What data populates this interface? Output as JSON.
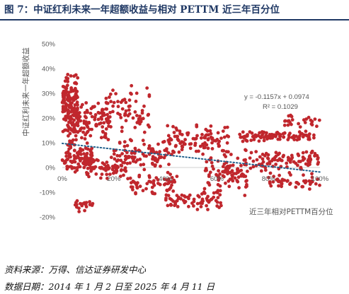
{
  "title": "图 7：中证红利未来一年超额收益与相对 PETTM 近三年百分位",
  "chart_data": {
    "type": "scatter",
    "xlabel": "近三年相对PETTM百分位",
    "ylabel": "中证红利未来一年超额收益",
    "x_ticks": [
      "0%",
      "20%",
      "40%",
      "60%",
      "80%",
      "100%"
    ],
    "y_ticks": [
      "50%",
      "40%",
      "30%",
      "20%",
      "10%",
      "0%",
      "-10%",
      "-20%"
    ],
    "xlim": [
      0,
      1
    ],
    "ylim": [
      -0.2,
      0.5
    ],
    "point_color": "#c0272d",
    "trend_color": "#1f5f8b",
    "trendline": {
      "slope": -0.1157,
      "intercept": 0.0974
    },
    "equation": "y = -0.1157x + 0.0974",
    "r2_text": "R² = 0.1029",
    "clusters": [
      {
        "x": [
          0.0,
          0.06
        ],
        "y": [
          0.08,
          0.4
        ],
        "n": 180
      },
      {
        "x": [
          0.0,
          0.12
        ],
        "y": [
          -0.02,
          0.1
        ],
        "n": 90
      },
      {
        "x": [
          0.06,
          0.18
        ],
        "y": [
          0.1,
          0.28
        ],
        "n": 90
      },
      {
        "x": [
          0.05,
          0.12
        ],
        "y": [
          -0.18,
          -0.13
        ],
        "n": 20
      },
      {
        "x": [
          0.08,
          0.25
        ],
        "y": [
          -0.05,
          0.05
        ],
        "n": 70
      },
      {
        "x": [
          0.16,
          0.34
        ],
        "y": [
          0.12,
          0.34
        ],
        "n": 70
      },
      {
        "x": [
          0.2,
          0.42
        ],
        "y": [
          -0.02,
          0.12
        ],
        "n": 90
      },
      {
        "x": [
          0.25,
          0.45
        ],
        "y": [
          -0.12,
          -0.01
        ],
        "n": 60
      },
      {
        "x": [
          0.4,
          0.62
        ],
        "y": [
          -0.18,
          -0.08
        ],
        "n": 70
      },
      {
        "x": [
          0.4,
          0.65
        ],
        "y": [
          0.04,
          0.18
        ],
        "n": 100
      },
      {
        "x": [
          0.55,
          0.72
        ],
        "y": [
          -0.12,
          0.08
        ],
        "n": 70
      },
      {
        "x": [
          0.6,
          0.7
        ],
        "y": [
          -0.06,
          0.03
        ],
        "n": 30
      },
      {
        "x": [
          0.68,
          0.98
        ],
        "y": [
          0.1,
          0.15
        ],
        "n": 100
      },
      {
        "x": [
          0.72,
          1.0
        ],
        "y": [
          -0.02,
          0.08
        ],
        "n": 90
      },
      {
        "x": [
          0.8,
          1.0
        ],
        "y": [
          -0.09,
          -0.02
        ],
        "n": 50
      },
      {
        "x": [
          0.86,
          1.0
        ],
        "y": [
          0.16,
          0.22
        ],
        "n": 25
      }
    ]
  },
  "footer": {
    "source": "资料来源：万得、信达证券研发中心",
    "date": "数据日期：2014 年 1 月 2 日至 2025 年 4 月 11 日"
  }
}
